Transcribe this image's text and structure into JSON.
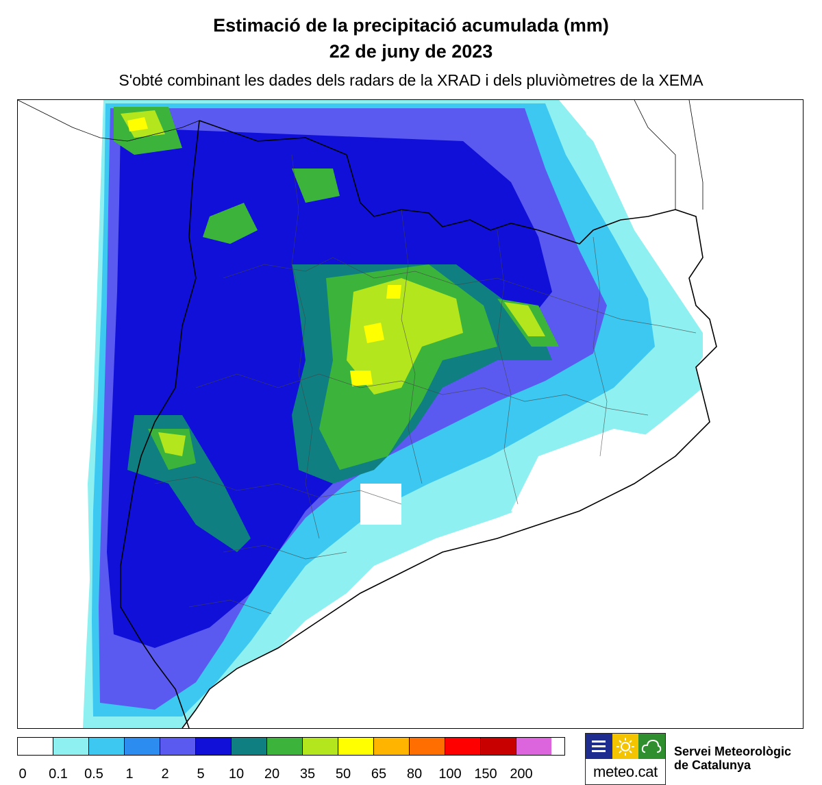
{
  "header": {
    "title": "Estimació de la precipitació acumulada (mm)",
    "date": "22 de juny de 2023",
    "subtitle": "S'obté combinant les dades dels radars de la XRAD i dels pluviòmetres de la XEMA"
  },
  "map": {
    "region": "Catalunya",
    "legend_colors": [
      "#ffffff",
      "#8ef0f0",
      "#3cc8f0",
      "#2d8cf0",
      "#5a5af0",
      "#1010d8",
      "#0f7f82",
      "#3cb43c",
      "#b4e61e",
      "#ffff00",
      "#ffb400",
      "#ff6e00",
      "#ff0000",
      "#c80000",
      "#dc64dc"
    ],
    "legend_labels": [
      "0",
      "0.1",
      "0.5",
      "1",
      "2",
      "5",
      "10",
      "20",
      "35",
      "50",
      "65",
      "80",
      "100",
      "150",
      "200"
    ]
  },
  "logo": {
    "brand": "meteo.cat",
    "org_line1": "Servei Meteorològic",
    "org_line2": "de Catalunya",
    "colors": {
      "blue": "#1f2c8f",
      "yellow": "#f5c400",
      "green": "#2f8f2f"
    },
    "icons": [
      "lines-icon",
      "sun-icon",
      "cloud-icon"
    ]
  }
}
